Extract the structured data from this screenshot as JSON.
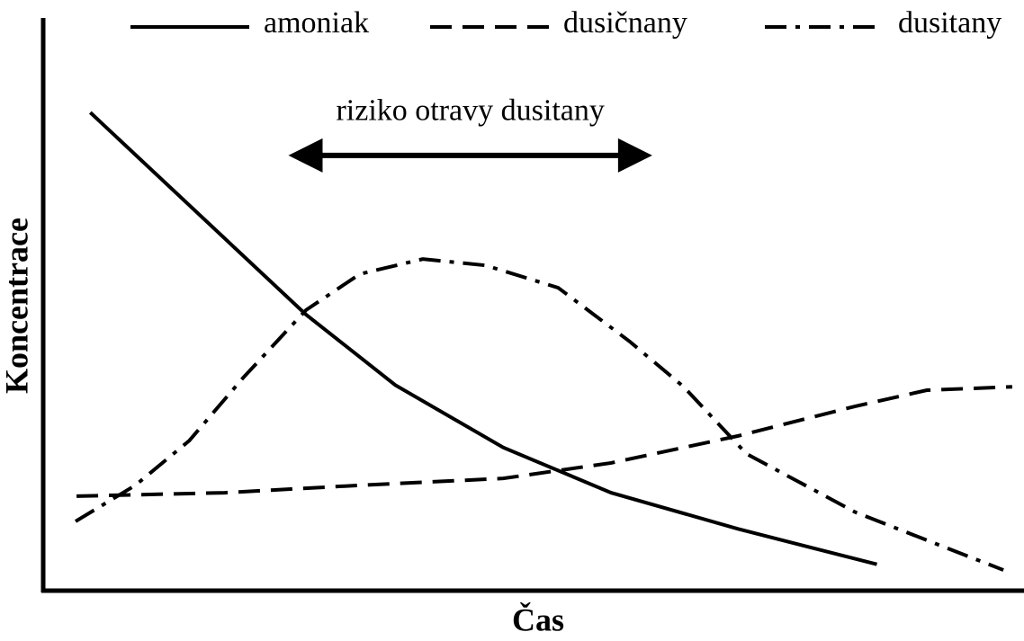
{
  "chart_data": {
    "type": "line",
    "x_label": "Čas",
    "y_label": "Koncentrace",
    "xlim": [
      0,
      100
    ],
    "ylim": [
      0,
      100
    ],
    "grid": false,
    "legend": "top",
    "annotation": {
      "text": "riziko otravy dusitany",
      "x": [
        25.0,
        62.1
      ],
      "y": 76.0
    },
    "series": [
      {
        "name": "amoniak",
        "color": "#000000",
        "dash": "solid",
        "x": [
          4.8,
          26.8,
          35.9,
          46.9,
          57.9,
          70.8,
          85.0
        ],
        "values": [
          83.5,
          48.2,
          35.9,
          25.0,
          17.1,
          10.8,
          4.6
        ]
      },
      {
        "name": "dusičnany",
        "color": "#000000",
        "dash": "dashed",
        "x": [
          3.4,
          18.5,
          32.3,
          46.9,
          57.9,
          70.8,
          82.8,
          90.1,
          98.8
        ],
        "values": [
          16.5,
          17.1,
          18.4,
          19.6,
          22.3,
          27.0,
          32.2,
          35.0,
          35.6
        ]
      },
      {
        "name": "dusitany",
        "color": "#000000",
        "dash": "dashdot",
        "x": [
          3.3,
          9.4,
          14.9,
          20.4,
          26.8,
          32.3,
          38.7,
          45.1,
          52.5,
          59.8,
          65.3,
          71.7,
          82.8,
          91.0,
          97.9
        ],
        "values": [
          12.1,
          18.4,
          26.2,
          37.2,
          49.0,
          55.3,
          57.9,
          56.8,
          52.9,
          43.5,
          35.6,
          23.9,
          13.7,
          8.2,
          3.6
        ]
      }
    ]
  }
}
